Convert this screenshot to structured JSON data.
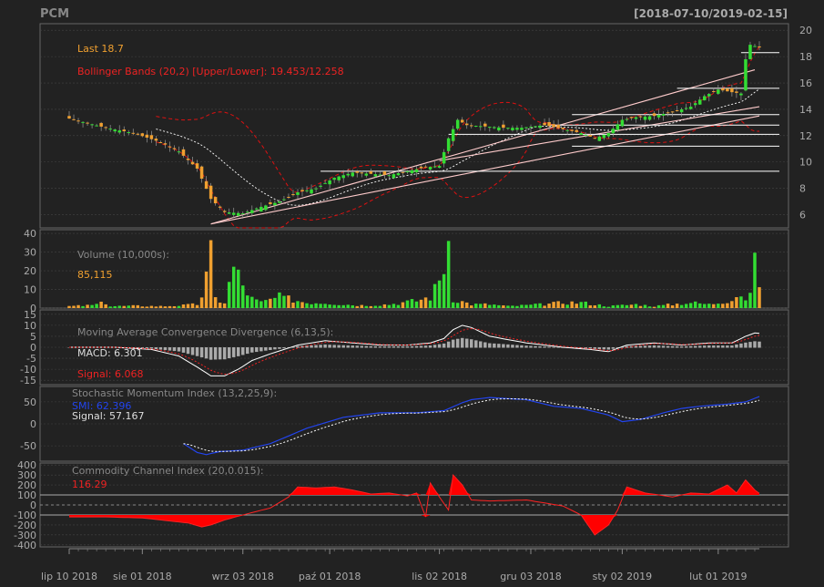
{
  "header": {
    "symbol": "PCM",
    "date_range": "[2018-07-10/2019-02-15]"
  },
  "colors": {
    "background": "#222222",
    "panel_border": "#666666",
    "grid": "#444444",
    "up": "#33dd33",
    "down": "#f0a030",
    "bband": "#dd1111",
    "ma": "#ffffff",
    "trend": "#ffcccc",
    "level": "#ffffff",
    "text_orange": "#f0a030",
    "text_red": "#ee2222",
    "smi_blue": "#2244ee",
    "cci_fill": "#ff0000",
    "axis_text": "#aaaaaa"
  },
  "x_axis": {
    "labels": [
      "lip 10 2018",
      "sie 01 2018",
      "wrz 03 2018",
      "paź 01 2018",
      "lis 02 2018",
      "gru 03 2018",
      "sty 02 2019",
      "lut 01 2019"
    ],
    "label_index": [
      0,
      16,
      38,
      57,
      81,
      101,
      121,
      142
    ],
    "n": 152
  },
  "price_panel": {
    "last_label": "Last 18.7",
    "bb_label": "Bollinger Bands (20,2) [Upper/Lower]: 19.453/12.258",
    "y_ticks": [
      6,
      8,
      10,
      12,
      14,
      16,
      18,
      20
    ],
    "ylim": [
      5,
      20.5
    ]
  },
  "volume_panel": {
    "title": "Volume (10,000s):",
    "value": "85,115",
    "y_ticks": [
      0,
      10,
      20,
      30,
      40
    ],
    "ylim": [
      0,
      42
    ]
  },
  "macd_panel": {
    "title": "Moving Average Convergence Divergence (6,13,5):",
    "macd_label": "MACD: 6.301",
    "signal_label": "Signal: 6.068",
    "y_ticks": [
      -15,
      -10,
      -5,
      0,
      5,
      10,
      15
    ],
    "ylim": [
      -17,
      17
    ]
  },
  "smi_panel": {
    "title": "Stochastic Momentum Index (13,2,25,9):",
    "smi_label": "SMI: 62.396",
    "signal_label": "Signal: 57.167",
    "y_ticks": [
      -50,
      0,
      50
    ],
    "ylim": [
      -85,
      85
    ]
  },
  "cci_panel": {
    "title": "Commodity Channel Index (20,0.015):",
    "value_label": "116.29",
    "y_ticks": [
      -400,
      -300,
      -200,
      -100,
      0,
      100,
      200,
      300,
      400
    ],
    "ylim": [
      -420,
      420
    ],
    "bands": [
      -100,
      0,
      100
    ]
  },
  "chart_data": {
    "type": "candlestick",
    "title": "PCM",
    "date_range": "2018-07-10 / 2019-02-15",
    "close_anchors": [
      [
        0,
        13.3
      ],
      [
        8,
        12.6
      ],
      [
        14,
        12.2
      ],
      [
        20,
        11.5
      ],
      [
        24,
        10.8
      ],
      [
        28,
        9.5
      ],
      [
        31,
        7.2
      ],
      [
        34,
        6.2
      ],
      [
        38,
        6.1
      ],
      [
        42,
        6.6
      ],
      [
        46,
        7.0
      ],
      [
        50,
        7.7
      ],
      [
        54,
        8.0
      ],
      [
        58,
        8.8
      ],
      [
        62,
        9.2
      ],
      [
        66,
        9.1
      ],
      [
        70,
        9.0
      ],
      [
        74,
        9.3
      ],
      [
        78,
        9.6
      ],
      [
        81,
        9.7
      ],
      [
        83,
        11.8
      ],
      [
        85,
        13.2
      ],
      [
        87,
        12.8
      ],
      [
        91,
        12.7
      ],
      [
        95,
        12.6
      ],
      [
        99,
        12.6
      ],
      [
        104,
        12.8
      ],
      [
        108,
        12.5
      ],
      [
        112,
        12.2
      ],
      [
        115,
        11.8
      ],
      [
        118,
        12.2
      ],
      [
        121,
        13.2
      ],
      [
        124,
        13.4
      ],
      [
        128,
        13.5
      ],
      [
        132,
        13.8
      ],
      [
        136,
        14.2
      ],
      [
        139,
        15.0
      ],
      [
        142,
        15.5
      ],
      [
        145,
        15.3
      ],
      [
        147,
        15.2
      ],
      [
        148,
        17.8
      ],
      [
        149,
        18.9
      ],
      [
        151,
        18.7
      ]
    ],
    "volume_anchors": [
      [
        0,
        1
      ],
      [
        5,
        1.5
      ],
      [
        8,
        3
      ],
      [
        9,
        1
      ],
      [
        15,
        1.2
      ],
      [
        20,
        1
      ],
      [
        25,
        1.5
      ],
      [
        28,
        2
      ],
      [
        29,
        7
      ],
      [
        30,
        16
      ],
      [
        31,
        27
      ],
      [
        32,
        5
      ],
      [
        34,
        3
      ],
      [
        36,
        22
      ],
      [
        38,
        12
      ],
      [
        40,
        5
      ],
      [
        42,
        3
      ],
      [
        46,
        6
      ],
      [
        48,
        5
      ],
      [
        52,
        3
      ],
      [
        56,
        3
      ],
      [
        60,
        2
      ],
      [
        64,
        1.5
      ],
      [
        70,
        2
      ],
      [
        76,
        4
      ],
      [
        79,
        6
      ],
      [
        80,
        10
      ],
      [
        81,
        15
      ],
      [
        82,
        24
      ],
      [
        83,
        38
      ],
      [
        84,
        5
      ],
      [
        88,
        2
      ],
      [
        92,
        2
      ],
      [
        96,
        1
      ],
      [
        100,
        1.5
      ],
      [
        104,
        2
      ],
      [
        108,
        3
      ],
      [
        112,
        3
      ],
      [
        118,
        1
      ],
      [
        124,
        2
      ],
      [
        128,
        1
      ],
      [
        132,
        2
      ],
      [
        136,
        3
      ],
      [
        140,
        2
      ],
      [
        144,
        4
      ],
      [
        147,
        8
      ],
      [
        148,
        4
      ],
      [
        149,
        6
      ],
      [
        150,
        40
      ],
      [
        151,
        8.5
      ]
    ],
    "macd_anchors": [
      [
        0,
        0
      ],
      [
        10,
        0
      ],
      [
        18,
        -1
      ],
      [
        24,
        -4
      ],
      [
        28,
        -9
      ],
      [
        31,
        -13
      ],
      [
        34,
        -13
      ],
      [
        37,
        -10
      ],
      [
        40,
        -6
      ],
      [
        44,
        -3
      ],
      [
        50,
        1
      ],
      [
        56,
        3
      ],
      [
        62,
        2
      ],
      [
        68,
        1
      ],
      [
        74,
        1
      ],
      [
        79,
        2
      ],
      [
        82,
        4
      ],
      [
        84,
        8
      ],
      [
        86,
        10
      ],
      [
        88,
        9
      ],
      [
        92,
        5
      ],
      [
        100,
        2
      ],
      [
        108,
        0
      ],
      [
        114,
        -1
      ],
      [
        118,
        -2
      ],
      [
        122,
        1
      ],
      [
        128,
        2
      ],
      [
        134,
        1
      ],
      [
        140,
        2
      ],
      [
        145,
        2
      ],
      [
        148,
        5
      ],
      [
        150,
        6.5
      ],
      [
        151,
        6.3
      ]
    ],
    "smi_anchors": [
      [
        25,
        -45
      ],
      [
        28,
        -65
      ],
      [
        30,
        -70
      ],
      [
        33,
        -63
      ],
      [
        38,
        -60
      ],
      [
        44,
        -45
      ],
      [
        52,
        -10
      ],
      [
        60,
        15
      ],
      [
        68,
        25
      ],
      [
        76,
        25
      ],
      [
        82,
        30
      ],
      [
        86,
        48
      ],
      [
        88,
        55
      ],
      [
        92,
        60
      ],
      [
        100,
        55
      ],
      [
        106,
        40
      ],
      [
        112,
        35
      ],
      [
        118,
        20
      ],
      [
        121,
        5
      ],
      [
        125,
        10
      ],
      [
        130,
        25
      ],
      [
        134,
        35
      ],
      [
        138,
        40
      ],
      [
        144,
        45
      ],
      [
        148,
        50
      ],
      [
        151,
        62
      ]
    ],
    "cci_anchors": [
      [
        0,
        -120
      ],
      [
        8,
        -120
      ],
      [
        16,
        -130
      ],
      [
        22,
        -160
      ],
      [
        26,
        -180
      ],
      [
        29,
        -220
      ],
      [
        31,
        -200
      ],
      [
        34,
        -150
      ],
      [
        38,
        -100
      ],
      [
        44,
        -30
      ],
      [
        48,
        80
      ],
      [
        50,
        180
      ],
      [
        54,
        170
      ],
      [
        58,
        180
      ],
      [
        62,
        150
      ],
      [
        66,
        110
      ],
      [
        70,
        120
      ],
      [
        74,
        90
      ],
      [
        76,
        120
      ],
      [
        78,
        -120
      ],
      [
        79,
        220
      ],
      [
        81,
        80
      ],
      [
        83,
        -50
      ],
      [
        84,
        300
      ],
      [
        86,
        200
      ],
      [
        88,
        50
      ],
      [
        92,
        40
      ],
      [
        100,
        50
      ],
      [
        108,
        -10
      ],
      [
        112,
        -100
      ],
      [
        115,
        -300
      ],
      [
        118,
        -200
      ],
      [
        120,
        -50
      ],
      [
        122,
        180
      ],
      [
        126,
        120
      ],
      [
        132,
        80
      ],
      [
        136,
        120
      ],
      [
        140,
        110
      ],
      [
        144,
        200
      ],
      [
        146,
        120
      ],
      [
        148,
        250
      ],
      [
        150,
        150
      ],
      [
        151,
        116
      ]
    ],
    "levels": [
      18.3,
      15.6,
      13.6,
      12.8,
      12.1,
      11.2,
      9.3
    ],
    "bb_last": {
      "upper": 19.453,
      "lower": 12.258
    },
    "last": 18.7,
    "macd_last": 6.301,
    "macd_signal_last": 6.068,
    "smi_last": 62.396,
    "smi_signal_last": 57.167,
    "cci_last": 116.29
  }
}
